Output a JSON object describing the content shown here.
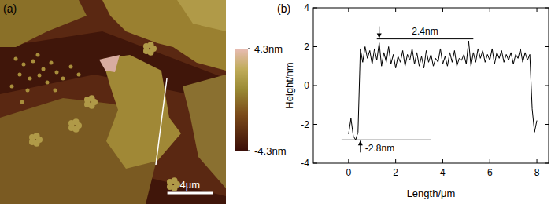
{
  "chart_data": [
    {
      "type": "image",
      "panel": "(a)",
      "xlim": [
        0,
        20
      ],
      "tick_labels": false,
      "color_range": [
        -4.3,
        4.3
      ],
      "colorbar_ticks": [
        {
          "value": 4.3,
          "label": "4.3nm"
        },
        {
          "value": -4.3,
          "label": "-4.3nm"
        }
      ],
      "scale_bar": {
        "value": 4,
        "label": "4μm"
      }
    },
    {
      "type": "line",
      "panel": "(b)",
      "x_label": "Length/μm",
      "y_label": "Height/nm",
      "color": "#000000",
      "xlim": [
        -1.5,
        8.5
      ],
      "ylim": [
        -4,
        4
      ],
      "xticks": [
        0,
        2,
        4,
        6,
        8
      ],
      "yticks": [
        -4,
        -2,
        0,
        2,
        4
      ],
      "x": [
        0,
        0.1,
        0.2,
        0.3,
        0.4,
        0.5,
        0.6,
        0.7,
        0.8,
        0.9,
        1.0,
        1.1,
        1.2,
        1.3,
        1.4,
        1.5,
        1.6,
        1.7,
        1.8,
        1.9,
        2.0,
        2.1,
        2.2,
        2.3,
        2.4,
        2.5,
        2.6,
        2.7,
        2.8,
        2.9,
        3.0,
        3.1,
        3.2,
        3.3,
        3.4,
        3.5,
        3.6,
        3.7,
        3.8,
        3.9,
        4.0,
        4.1,
        4.2,
        4.3,
        4.4,
        4.5,
        4.6,
        4.7,
        4.8,
        4.9,
        5.0,
        5.1,
        5.2,
        5.3,
        5.4,
        5.5,
        5.6,
        5.7,
        5.8,
        5.9,
        6.0,
        6.1,
        6.2,
        6.3,
        6.4,
        6.5,
        6.6,
        6.7,
        6.8,
        6.9,
        7.0,
        7.1,
        7.2,
        7.3,
        7.4,
        7.5,
        7.6,
        7.7,
        7.8,
        7.9,
        8.0
      ],
      "values": [
        -2.5,
        -1.7,
        -2.6,
        -2.8,
        -2.4,
        1.9,
        1.2,
        2.0,
        1.4,
        1.8,
        1.1,
        1.9,
        1.3,
        2.2,
        1.0,
        1.7,
        1.2,
        2.0,
        1.1,
        1.6,
        0.9,
        1.5,
        1.2,
        1.8,
        1.0,
        1.6,
        1.3,
        1.9,
        1.1,
        1.7,
        1.0,
        1.5,
        0.9,
        1.8,
        1.2,
        1.6,
        1.0,
        1.4,
        1.2,
        1.9,
        1.1,
        1.5,
        1.0,
        1.7,
        1.2,
        1.8,
        1.0,
        1.4,
        1.3,
        1.6,
        1.1,
        2.3,
        1.0,
        1.7,
        1.2,
        1.9,
        1.4,
        1.8,
        1.2,
        1.6,
        1.3,
        1.9,
        1.1,
        1.7,
        1.4,
        1.8,
        1.2,
        1.6,
        1.3,
        1.7,
        1.1,
        1.6,
        1.4,
        1.9,
        1.2,
        1.7,
        1.3,
        1.6,
        -1.2,
        -2.4,
        -1.8
      ],
      "annotations": [
        {
          "text": "2.4nm",
          "y": 2.4,
          "x": [
            1.2,
            5.3
          ],
          "arrow_x": 1.3
        },
        {
          "text": "-2.8nm",
          "y": -2.8,
          "x": [
            -0.3,
            3.5
          ],
          "arrow_x": 0.5
        }
      ]
    }
  ]
}
